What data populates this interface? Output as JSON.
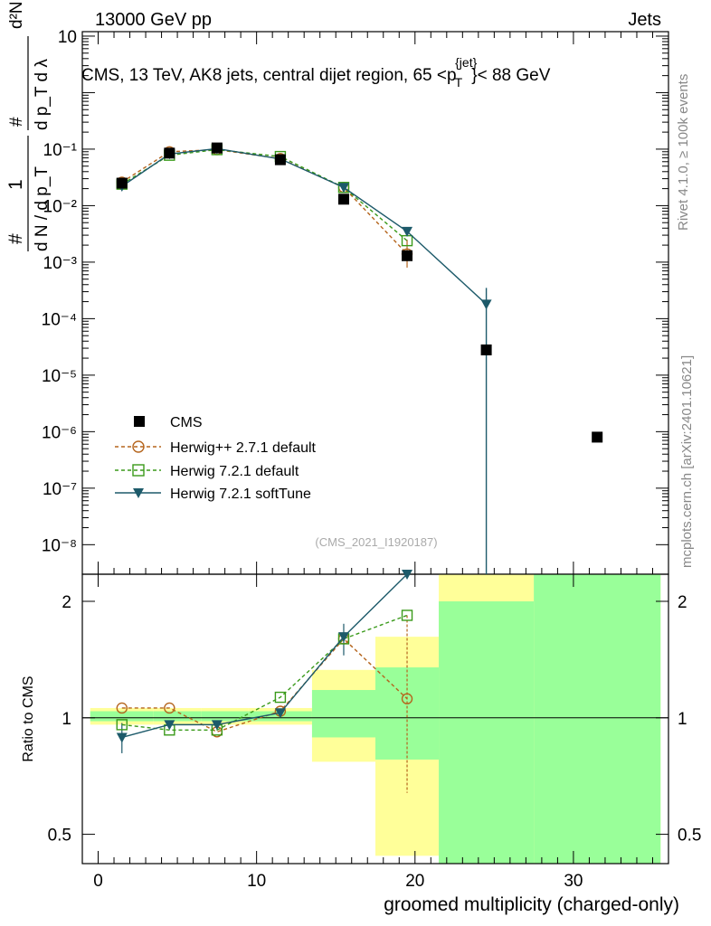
{
  "header": {
    "left": "13000 GeV pp",
    "right": "Jets",
    "title": "CMS, 13 TeV, AK8 jets, central dijet region, 65 <p",
    "title_sup": "{jet}",
    "title_sub": "T",
    "title_end": "}< 88 GeV",
    "side_top": "Rivet 4.1.0, ≥ 100k events",
    "side_bottom": "mcplots.cern.ch [arXiv:2401.10621]",
    "analysis_id": "(CMS_2021_I1920187)"
  },
  "colors": {
    "cms": "#000000",
    "herwigpp": "#b5651d",
    "herwig721": "#3a9a1a",
    "softtune": "#1d5a6a",
    "band_yellow": "#ffff99",
    "band_green": "#99ff99"
  },
  "chart_data": [
    {
      "type": "scatter",
      "panel": "main",
      "yscale": "log",
      "ylabel_top": "d²N",
      "ylabel_mid": "d p_T d λ",
      "ylabel_bottom": "d N / d p_T",
      "ylabel_num": "1",
      "ylabel_hash": "#",
      "xlim": [
        -1,
        36
      ],
      "ylim": [
        3e-09,
        12
      ],
      "y_ticks": [
        "10",
        "10⁻¹",
        "10⁻²",
        "10⁻³",
        "10⁻⁴",
        "10⁻⁵",
        "10⁻⁶",
        "10⁻⁷",
        "10⁻⁸"
      ],
      "y_tick_values": [
        10,
        0.1,
        0.01,
        0.001,
        0.0001,
        1e-05,
        1e-06,
        1e-07,
        1e-08
      ],
      "series": [
        {
          "name": "CMS",
          "x": [
            1.5,
            4.5,
            7.5,
            11.5,
            15.5,
            19.5,
            24.5,
            31.5
          ],
          "y": [
            0.025,
            0.085,
            0.105,
            0.065,
            0.013,
            0.0013,
            2.8e-05,
            8e-07
          ]
        },
        {
          "name": "Herwig++ 2.7.1 default",
          "x": [
            1.5,
            4.5,
            7.5,
            11.5,
            15.5,
            19.5
          ],
          "y": [
            0.026,
            0.09,
            0.098,
            0.068,
            0.021,
            0.0014
          ]
        },
        {
          "name": "Herwig 7.2.1 default",
          "x": [
            1.5,
            4.5,
            7.5,
            11.5,
            15.5,
            19.5
          ],
          "y": [
            0.024,
            0.078,
            0.098,
            0.074,
            0.021,
            0.0024
          ]
        },
        {
          "name": "Herwig 7.2.1 softTune",
          "x": [
            1.5,
            4.5,
            7.5,
            11.5,
            15.5,
            19.5,
            24.5
          ],
          "y": [
            0.022,
            0.082,
            0.102,
            0.067,
            0.021,
            0.0035,
            0.00018
          ]
        }
      ]
    },
    {
      "type": "line",
      "panel": "ratio",
      "ylabel": "Ratio to CMS",
      "xlabel": "groomed multiplicity (charged-only)",
      "xlim": [
        -1,
        36
      ],
      "ylim": [
        0.42,
        2.35
      ],
      "x_ticks": [
        "0",
        "10",
        "20",
        "30"
      ],
      "x_tick_values": [
        0,
        10,
        20,
        30
      ],
      "y_ticks": [
        "2",
        "1",
        "0.5"
      ],
      "y_tick_values": [
        2,
        1,
        0.5
      ],
      "bands": [
        {
          "x0": -0.5,
          "x1": 3.5,
          "yellow": [
            0.96,
            1.06
          ],
          "green": [
            0.98,
            1.04
          ]
        },
        {
          "x0": 3.5,
          "x1": 6.5,
          "yellow": [
            0.96,
            1.06
          ],
          "green": [
            0.98,
            1.04
          ]
        },
        {
          "x0": 6.5,
          "x1": 9.5,
          "yellow": [
            0.96,
            1.06
          ],
          "green": [
            0.98,
            1.04
          ]
        },
        {
          "x0": 9.5,
          "x1": 13.5,
          "yellow": [
            0.96,
            1.06
          ],
          "green": [
            0.98,
            1.04
          ]
        },
        {
          "x0": 13.5,
          "x1": 17.5,
          "yellow": [
            0.77,
            1.33
          ],
          "green": [
            0.89,
            1.18
          ]
        },
        {
          "x0": 17.5,
          "x1": 21.5,
          "yellow": [
            0.44,
            1.62
          ],
          "green": [
            0.78,
            1.35
          ]
        },
        {
          "x0": 21.5,
          "x1": 27.5,
          "yellow": [
            0.42,
            2.35
          ],
          "green": [
            0.42,
            2.0
          ]
        },
        {
          "x0": 27.5,
          "x1": 35.5,
          "yellow": [
            0.42,
            2.35
          ],
          "green": [
            0.42,
            2.35
          ]
        }
      ],
      "series": [
        {
          "name": "Herwig++ 2.7.1 default",
          "x": [
            1.5,
            4.5,
            7.5,
            11.5,
            15.5,
            19.5
          ],
          "y": [
            1.06,
            1.06,
            0.92,
            1.04,
            1.6,
            1.12
          ]
        },
        {
          "name": "Herwig 7.2.1 default",
          "x": [
            1.5,
            4.5,
            7.5,
            11.5,
            15.5,
            19.5
          ],
          "y": [
            0.96,
            0.93,
            0.93,
            1.13,
            1.6,
            1.84
          ]
        },
        {
          "name": "Herwig 7.2.1 softTune",
          "x": [
            1.5,
            4.5,
            7.5,
            11.5,
            15.5,
            19.5
          ],
          "y": [
            0.89,
            0.96,
            0.96,
            1.03,
            1.62,
            2.35
          ]
        }
      ]
    }
  ]
}
